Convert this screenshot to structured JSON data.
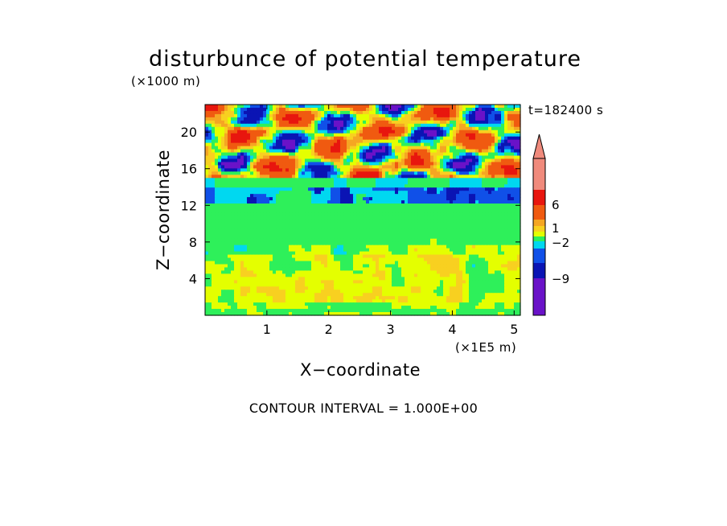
{
  "chart_data": {
    "type": "heatmap",
    "title": "disturbunce of potential temperature",
    "y_unit_label": "(×1000 m)",
    "x_unit_label": "(×1E5 m)",
    "xlabel": "X−coordinate",
    "ylabel": "Z−coordinate",
    "time_label": "t=182400 s",
    "contour_label": "CONTOUR INTERVAL = 1.000E+00",
    "x_range": [
      0,
      5.1
    ],
    "y_range": [
      0,
      23
    ],
    "x_ticks": [
      1,
      2,
      3,
      4,
      5
    ],
    "y_ticks": [
      4,
      8,
      12,
      16,
      20
    ],
    "colorbar": {
      "labels": [
        6,
        1,
        -2,
        -9
      ],
      "levels": [
        {
          "from": 9,
          "color": "#f08a7c"
        },
        {
          "from": 6,
          "color": "#e8160e"
        },
        {
          "from": 3,
          "color": "#f05a10"
        },
        {
          "from": 2,
          "color": "#f5a623"
        },
        {
          "from": 1,
          "color": "#f8d020"
        },
        {
          "from": 0,
          "color": "#e4ff00"
        },
        {
          "from": -1,
          "color": "#2ef05a"
        },
        {
          "from": -2,
          "color": "#00d8f0"
        },
        {
          "from": -3,
          "color": "#1050e8"
        },
        {
          "from": -5,
          "color": "#0a14b4"
        },
        {
          "from": -9,
          "color": "#6a12c8"
        },
        {
          "from": -12,
          "color": "#e80ac8"
        }
      ],
      "extend_top_color": "#f08a7c"
    }
  }
}
